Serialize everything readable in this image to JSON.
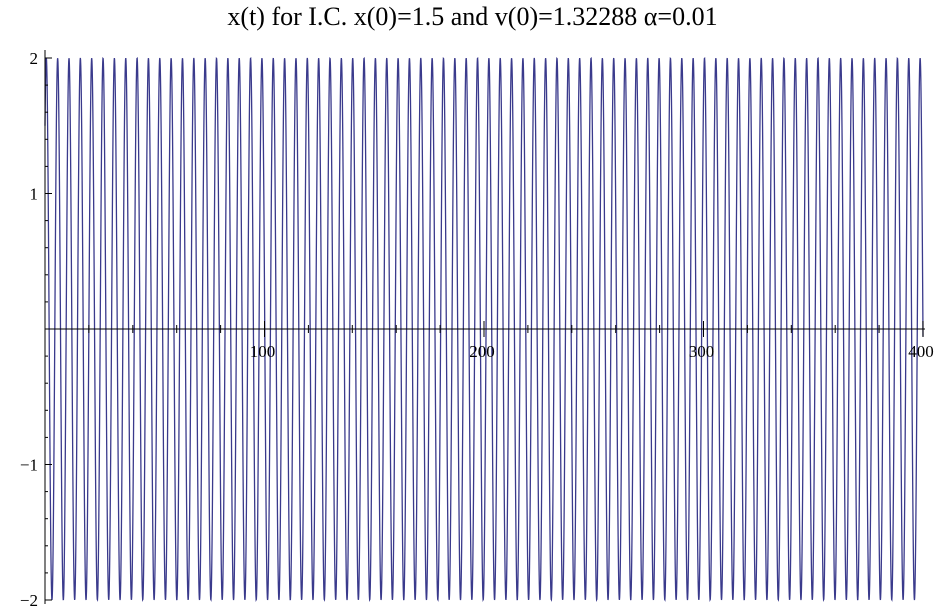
{
  "chart_data": {
    "type": "line",
    "title": "x(t) for I.C. x(0)=1.5 and v(0)=1.32288  α=0.01",
    "xlabel": "",
    "ylabel": "",
    "xlim": [
      0,
      400
    ],
    "ylim": [
      -2,
      2
    ],
    "x_ticks": [
      "100",
      "200",
      "300",
      "400"
    ],
    "y_ticks": [
      "2",
      "1",
      "−1",
      "−2"
    ],
    "series": [
      {
        "function": "oscillation",
        "x_start": 0,
        "x_end": 400,
        "period": 5.17,
        "amplitude": 2,
        "initial_value": 1.5,
        "samples": 4000,
        "color": "#3a3a8c"
      }
    ],
    "grid": false,
    "legend": "none"
  }
}
